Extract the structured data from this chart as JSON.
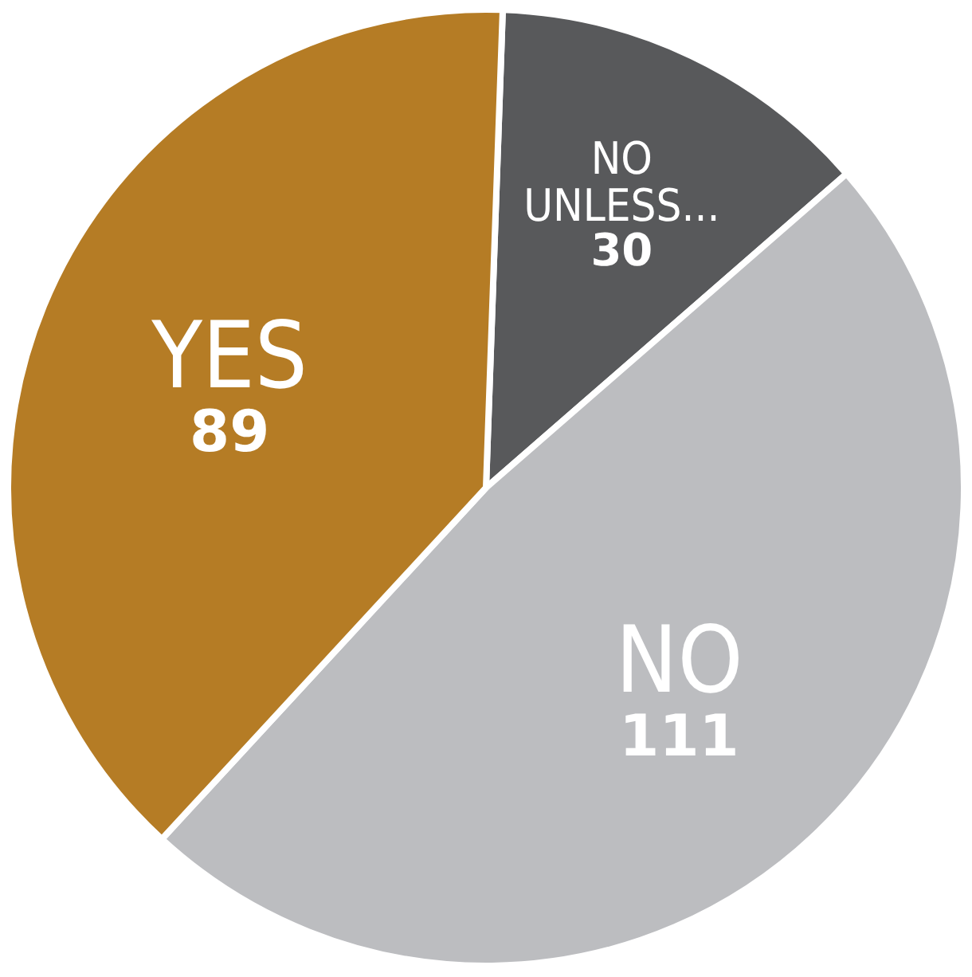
{
  "chart_data": {
    "type": "pie",
    "categories": [
      "NO UNLESS...",
      "NO",
      "YES"
    ],
    "values": [
      30,
      111,
      89
    ],
    "colors": [
      "#58595b",
      "#bcbdc0",
      "#b57c25"
    ],
    "data_labels": true
  }
}
